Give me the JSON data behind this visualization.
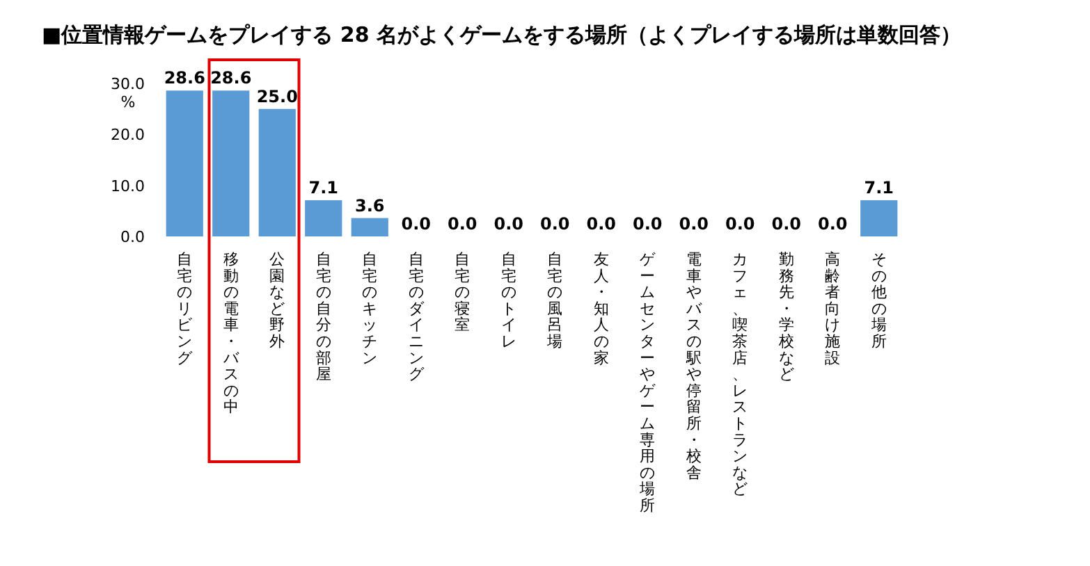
{
  "chart_data": {
    "type": "bar",
    "title": "■位置情報ゲームをプレイする 28 名がよくゲームをする場所（よくプレイする場所は単数回答）",
    "ylabel": "%",
    "categories": [
      "自宅のリビング",
      "移動の電車・バスの中",
      "公園など野外",
      "自宅の自分の部屋",
      "自宅のキッチン",
      "自宅のダイニング",
      "自宅の寝室",
      "自宅のトイレ",
      "自宅の風呂場",
      "友人・知人の家",
      "ゲームセンターやゲーム専用の場所",
      "電車やバスの駅や停留所・校舎",
      "カフェ、喫茶店、レストランなど",
      "勤務先・学校など",
      "高齢者向け施設",
      "その他の場所"
    ],
    "values": [
      28.6,
      28.6,
      25.0,
      7.1,
      3.6,
      0.0,
      0.0,
      0.0,
      0.0,
      0.0,
      0.0,
      0.0,
      0.0,
      0.0,
      0.0,
      7.1
    ],
    "color": "#5b9bd5",
    "ylim": [
      0,
      30
    ],
    "yticks": [
      {
        "value": 0,
        "label": "0.0"
      },
      {
        "value": 10,
        "label": "10.0"
      },
      {
        "value": 20,
        "label": "20.0"
      },
      {
        "value": 30,
        "label": "30.0"
      }
    ],
    "value_labels": [
      "28.6",
      "28.6",
      "25.0",
      "7.1",
      "3.6",
      "0.0",
      "0.0",
      "0.0",
      "0.0",
      "0.0",
      "0.0",
      "0.0",
      "0.0",
      "0.0",
      "0.0",
      "7.1"
    ],
    "grid": false
  }
}
